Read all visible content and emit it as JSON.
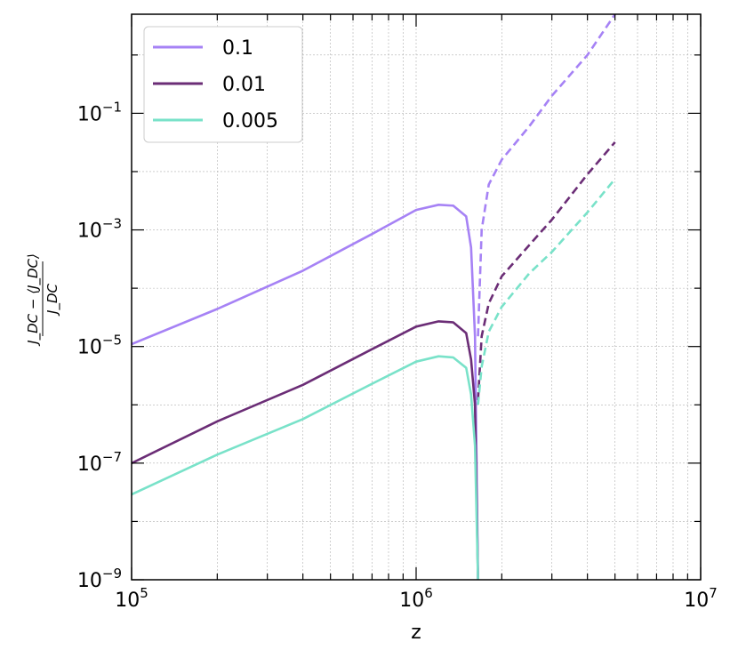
{
  "chart_data": {
    "type": "line",
    "title": "",
    "xlabel": "z",
    "ylabel": "(J_DC − ⟨J_DC⟩) / J_DC",
    "ylabel_parts": {
      "numerator": "J_DC − ⟨J_DC⟩",
      "denominator": "J_DC"
    },
    "xscale": "log",
    "yscale": "log",
    "xlim": [
      100000,
      10000000
    ],
    "ylim": [
      1e-09,
      5
    ],
    "x_ticks": [
      {
        "value": 100000,
        "label": "10^5"
      },
      {
        "value": 1000000,
        "label": "10^6"
      },
      {
        "value": 10000000,
        "label": "10^7"
      }
    ],
    "y_ticks": [
      {
        "value": 1e-09,
        "label": "10^−9"
      },
      {
        "value": 1e-07,
        "label": "10^−7"
      },
      {
        "value": 1e-05,
        "label": "10^−5"
      },
      {
        "value": 0.001,
        "label": "10^−3"
      },
      {
        "value": 0.1,
        "label": "10^−1"
      }
    ],
    "grid": true,
    "legend_position": "top-left",
    "series": [
      {
        "name": "0.1",
        "color": "#a682f5",
        "solid": [
          [
            100000,
            1.1e-05
          ],
          [
            200000,
            4.4e-05
          ],
          [
            400000,
            0.0002
          ],
          [
            700000,
            0.00085
          ],
          [
            1000000,
            0.0022
          ],
          [
            1200000,
            0.0027
          ],
          [
            1350000,
            0.0026
          ],
          [
            1500000,
            0.0017
          ],
          [
            1560000,
            0.0005
          ],
          [
            1610000,
            1.5e-05
          ],
          [
            1650000,
            1e-09
          ]
        ],
        "dashed": [
          [
            1650000,
            1.5e-05
          ],
          [
            1700000,
            0.001
          ],
          [
            1800000,
            0.006
          ],
          [
            2000000,
            0.016
          ],
          [
            2500000,
            0.06
          ],
          [
            3000000,
            0.2
          ],
          [
            4000000,
            1.0
          ],
          [
            5000000,
            5.0
          ]
        ]
      },
      {
        "name": "0.01",
        "color": "#6b2d76",
        "solid": [
          [
            100000,
            1e-07
          ],
          [
            200000,
            5.2e-07
          ],
          [
            400000,
            2.2e-06
          ],
          [
            700000,
            9e-06
          ],
          [
            1000000,
            2.2e-05
          ],
          [
            1200000,
            2.7e-05
          ],
          [
            1350000,
            2.6e-05
          ],
          [
            1500000,
            1.7e-05
          ],
          [
            1560000,
            6e-06
          ],
          [
            1610000,
            1e-06
          ],
          [
            1650000,
            1e-09
          ]
        ],
        "dashed": [
          [
            1650000,
            1.2e-06
          ],
          [
            1700000,
            1.5e-05
          ],
          [
            1800000,
            5.5e-05
          ],
          [
            2000000,
            0.00016
          ],
          [
            2500000,
            0.00055
          ],
          [
            3000000,
            0.0015
          ],
          [
            4000000,
            0.009
          ],
          [
            5000000,
            0.032
          ]
        ]
      },
      {
        "name": "0.005",
        "color": "#79e2c9",
        "solid": [
          [
            100000,
            2.9e-08
          ],
          [
            200000,
            1.4e-07
          ],
          [
            400000,
            5.7e-07
          ],
          [
            700000,
            2.3e-06
          ],
          [
            1000000,
            5.5e-06
          ],
          [
            1200000,
            6.8e-06
          ],
          [
            1350000,
            6.5e-06
          ],
          [
            1500000,
            4.3e-06
          ],
          [
            1560000,
            1.5e-06
          ],
          [
            1610000,
            2e-07
          ],
          [
            1650000,
            1e-09
          ]
        ],
        "dashed": [
          [
            1650000,
            1e-06
          ],
          [
            1700000,
            4.5e-06
          ],
          [
            1800000,
            1.8e-05
          ],
          [
            2000000,
            4.8e-05
          ],
          [
            2500000,
            0.00018
          ],
          [
            3000000,
            0.00042
          ],
          [
            4000000,
            0.002
          ],
          [
            5000000,
            0.0075
          ]
        ]
      }
    ]
  }
}
